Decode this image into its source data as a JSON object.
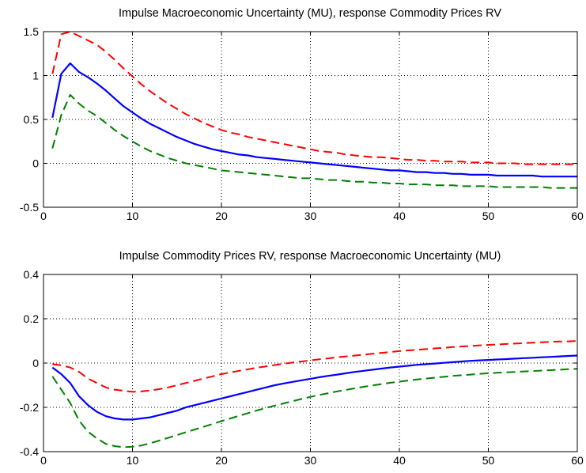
{
  "chart_data": [
    {
      "type": "line",
      "title": "Impulse Macroeconomic Uncertainty (MU), response Commodity Prices RV",
      "xlabel": "",
      "ylabel": "",
      "xlim": [
        0,
        60
      ],
      "ylim": [
        -0.5,
        1.5
      ],
      "xticks": [
        0,
        10,
        20,
        30,
        40,
        50,
        60
      ],
      "yticks": [
        -0.5,
        0,
        0.5,
        1,
        1.5
      ],
      "xtick_labels": [
        "0",
        "10",
        "20",
        "30",
        "40",
        "50",
        "60"
      ],
      "ytick_labels": [
        "-0.5",
        "0",
        "0.5",
        "1",
        "1.5"
      ],
      "grid": true,
      "x": [
        1,
        2,
        3,
        4,
        5,
        6,
        7,
        8,
        9,
        10,
        11,
        12,
        13,
        14,
        15,
        16,
        17,
        18,
        19,
        20,
        21,
        22,
        23,
        24,
        25,
        26,
        27,
        28,
        29,
        30,
        31,
        32,
        33,
        34,
        35,
        36,
        37,
        38,
        39,
        40,
        41,
        42,
        43,
        44,
        45,
        46,
        47,
        48,
        49,
        50,
        51,
        52,
        53,
        54,
        55,
        56,
        57,
        58,
        59,
        60
      ],
      "series": [
        {
          "color": "#ff0000",
          "style": "dashed",
          "values": [
            1.02,
            1.47,
            1.5,
            1.45,
            1.4,
            1.35,
            1.27,
            1.18,
            1.08,
            0.99,
            0.9,
            0.82,
            0.75,
            0.68,
            0.62,
            0.56,
            0.51,
            0.46,
            0.42,
            0.38,
            0.35,
            0.33,
            0.3,
            0.28,
            0.26,
            0.24,
            0.22,
            0.2,
            0.18,
            0.16,
            0.14,
            0.13,
            0.12,
            0.1,
            0.09,
            0.08,
            0.07,
            0.07,
            0.06,
            0.05,
            0.04,
            0.04,
            0.03,
            0.03,
            0.02,
            0.02,
            0.02,
            0.01,
            0.01,
            0.01,
            0.0,
            0.0,
            0.0,
            -0.01,
            -0.01,
            -0.01,
            -0.01,
            -0.01,
            -0.01,
            -0.01
          ]
        },
        {
          "color": "#0000ff",
          "style": "solid",
          "values": [
            0.52,
            1.02,
            1.14,
            1.04,
            0.98,
            0.91,
            0.83,
            0.74,
            0.65,
            0.58,
            0.51,
            0.45,
            0.4,
            0.35,
            0.3,
            0.26,
            0.22,
            0.19,
            0.16,
            0.14,
            0.12,
            0.1,
            0.09,
            0.07,
            0.06,
            0.05,
            0.04,
            0.03,
            0.02,
            0.01,
            0.0,
            -0.01,
            -0.02,
            -0.03,
            -0.04,
            -0.05,
            -0.06,
            -0.07,
            -0.08,
            -0.08,
            -0.09,
            -0.1,
            -0.1,
            -0.11,
            -0.11,
            -0.12,
            -0.12,
            -0.13,
            -0.13,
            -0.13,
            -0.14,
            -0.14,
            -0.14,
            -0.14,
            -0.14,
            -0.15,
            -0.15,
            -0.15,
            -0.15,
            -0.15
          ]
        },
        {
          "color": "#008000",
          "style": "dashed",
          "values": [
            0.17,
            0.55,
            0.78,
            0.68,
            0.6,
            0.54,
            0.46,
            0.38,
            0.31,
            0.25,
            0.19,
            0.14,
            0.1,
            0.06,
            0.03,
            0.0,
            -0.02,
            -0.04,
            -0.06,
            -0.08,
            -0.09,
            -0.1,
            -0.11,
            -0.12,
            -0.13,
            -0.14,
            -0.15,
            -0.16,
            -0.17,
            -0.17,
            -0.18,
            -0.19,
            -0.19,
            -0.2,
            -0.21,
            -0.21,
            -0.22,
            -0.22,
            -0.23,
            -0.23,
            -0.24,
            -0.24,
            -0.24,
            -0.25,
            -0.25,
            -0.25,
            -0.26,
            -0.26,
            -0.26,
            -0.26,
            -0.27,
            -0.27,
            -0.27,
            -0.27,
            -0.27,
            -0.27,
            -0.28,
            -0.28,
            -0.28,
            -0.28
          ]
        }
      ]
    },
    {
      "type": "line",
      "title": "Impulse Commodity Prices RV, response Macroeconomic Uncertainty (MU)",
      "xlabel": "",
      "ylabel": "",
      "xlim": [
        0,
        60
      ],
      "ylim": [
        -0.4,
        0.4
      ],
      "xticks": [
        0,
        10,
        20,
        30,
        40,
        50,
        60
      ],
      "yticks": [
        -0.4,
        -0.2,
        0,
        0.2,
        0.4
      ],
      "xtick_labels": [
        "0",
        "10",
        "20",
        "30",
        "40",
        "50",
        "60"
      ],
      "ytick_labels": [
        "-0.4",
        "-0.2",
        "0",
        "0.2",
        "0.4"
      ],
      "grid": true,
      "x": [
        1,
        2,
        3,
        4,
        5,
        6,
        7,
        8,
        9,
        10,
        11,
        12,
        13,
        14,
        15,
        16,
        17,
        18,
        19,
        20,
        21,
        22,
        23,
        24,
        25,
        26,
        27,
        28,
        29,
        30,
        31,
        32,
        33,
        34,
        35,
        36,
        37,
        38,
        39,
        40,
        41,
        42,
        43,
        44,
        45,
        46,
        47,
        48,
        49,
        50,
        51,
        52,
        53,
        54,
        55,
        56,
        57,
        58,
        59,
        60
      ],
      "series": [
        {
          "color": "#ff0000",
          "style": "dashed",
          "values": [
            -0.005,
            -0.01,
            -0.02,
            -0.04,
            -0.07,
            -0.09,
            -0.11,
            -0.12,
            -0.125,
            -0.13,
            -0.128,
            -0.124,
            -0.118,
            -0.11,
            -0.1,
            -0.09,
            -0.08,
            -0.07,
            -0.06,
            -0.05,
            -0.042,
            -0.035,
            -0.028,
            -0.021,
            -0.015,
            -0.009,
            -0.003,
            0.002,
            0.007,
            0.012,
            0.017,
            0.021,
            0.026,
            0.03,
            0.034,
            0.038,
            0.042,
            0.046,
            0.05,
            0.054,
            0.057,
            0.06,
            0.063,
            0.066,
            0.069,
            0.072,
            0.075,
            0.077,
            0.08,
            0.082,
            0.084,
            0.086,
            0.088,
            0.09,
            0.092,
            0.094,
            0.096,
            0.097,
            0.098,
            0.1
          ]
        },
        {
          "color": "#0000ff",
          "style": "solid",
          "values": [
            -0.02,
            -0.05,
            -0.09,
            -0.15,
            -0.19,
            -0.22,
            -0.24,
            -0.25,
            -0.255,
            -0.255,
            -0.25,
            -0.245,
            -0.235,
            -0.225,
            -0.215,
            -0.2,
            -0.19,
            -0.18,
            -0.17,
            -0.16,
            -0.15,
            -0.14,
            -0.13,
            -0.12,
            -0.11,
            -0.1,
            -0.092,
            -0.085,
            -0.078,
            -0.071,
            -0.064,
            -0.058,
            -0.052,
            -0.046,
            -0.04,
            -0.035,
            -0.03,
            -0.025,
            -0.02,
            -0.016,
            -0.012,
            -0.008,
            -0.005,
            -0.002,
            0.001,
            0.004,
            0.007,
            0.01,
            0.012,
            0.014,
            0.016,
            0.018,
            0.02,
            0.022,
            0.024,
            0.026,
            0.028,
            0.03,
            0.032,
            0.034
          ]
        },
        {
          "color": "#008000",
          "style": "dashed",
          "values": [
            -0.06,
            -0.12,
            -0.18,
            -0.26,
            -0.31,
            -0.34,
            -0.365,
            -0.375,
            -0.38,
            -0.378,
            -0.372,
            -0.362,
            -0.35,
            -0.338,
            -0.325,
            -0.312,
            -0.3,
            -0.288,
            -0.275,
            -0.262,
            -0.25,
            -0.238,
            -0.226,
            -0.214,
            -0.203,
            -0.192,
            -0.182,
            -0.172,
            -0.162,
            -0.153,
            -0.144,
            -0.136,
            -0.128,
            -0.121,
            -0.114,
            -0.107,
            -0.101,
            -0.095,
            -0.089,
            -0.084,
            -0.079,
            -0.074,
            -0.07,
            -0.066,
            -0.062,
            -0.058,
            -0.055,
            -0.052,
            -0.049,
            -0.046,
            -0.044,
            -0.042,
            -0.04,
            -0.038,
            -0.036,
            -0.034,
            -0.032,
            -0.03,
            -0.028,
            -0.026
          ]
        }
      ]
    }
  ]
}
